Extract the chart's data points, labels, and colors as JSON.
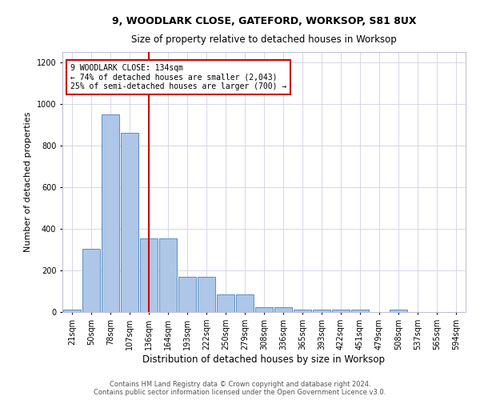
{
  "title_line1": "9, WOODLARK CLOSE, GATEFORD, WORKSOP, S81 8UX",
  "title_line2": "Size of property relative to detached houses in Worksop",
  "xlabel": "Distribution of detached houses by size in Worksop",
  "ylabel": "Number of detached properties",
  "footnote": "Contains HM Land Registry data © Crown copyright and database right 2024.\nContains public sector information licensed under the Open Government Licence v3.0.",
  "bar_labels": [
    "21sqm",
    "50sqm",
    "78sqm",
    "107sqm",
    "136sqm",
    "164sqm",
    "193sqm",
    "222sqm",
    "250sqm",
    "279sqm",
    "308sqm",
    "336sqm",
    "365sqm",
    "393sqm",
    "422sqm",
    "451sqm",
    "479sqm",
    "508sqm",
    "537sqm",
    "565sqm",
    "594sqm"
  ],
  "bar_values": [
    10,
    305,
    950,
    860,
    355,
    355,
    170,
    170,
    85,
    85,
    25,
    25,
    10,
    10,
    10,
    10,
    0,
    10,
    0,
    0,
    0
  ],
  "bar_color": "#aec6e8",
  "bar_edge_color": "#5a8fc2",
  "annotation_text": "9 WOODLARK CLOSE: 134sqm\n← 74% of detached houses are smaller (2,043)\n25% of semi-detached houses are larger (700) →",
  "annotation_box_color": "#ffffff",
  "annotation_box_edge": "#cc0000",
  "vline_color": "#cc0000",
  "vline_x": 4.0,
  "ylim": [
    0,
    1250
  ],
  "yticks": [
    0,
    200,
    400,
    600,
    800,
    1000,
    1200
  ],
  "background_color": "#ffffff",
  "grid_color": "#d0d0e0",
  "title1_fontsize": 9,
  "title2_fontsize": 8.5,
  "ylabel_fontsize": 8,
  "xlabel_fontsize": 8.5,
  "tick_fontsize": 7,
  "footnote_fontsize": 6
}
